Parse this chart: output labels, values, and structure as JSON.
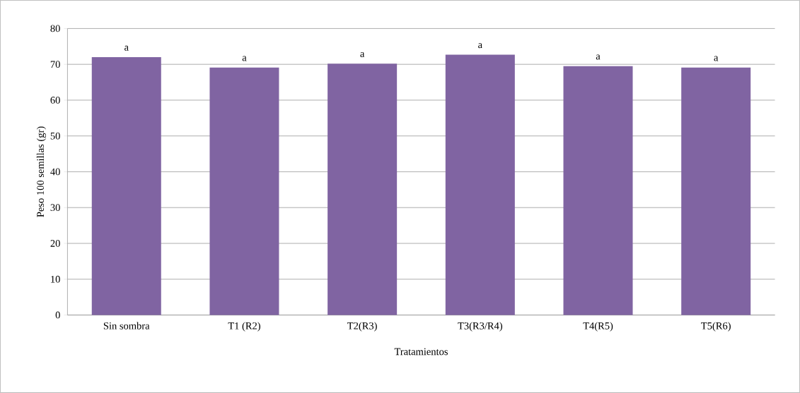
{
  "chart_data": {
    "type": "bar",
    "xlabel": "Tratamientos",
    "ylabel": "Peso 100 semillas (gr)",
    "categories": [
      "Sin sombra",
      "T1 (R2)",
      "T2(R3)",
      "T3(R3/R4)",
      "T4(R5)",
      "T5(R6)"
    ],
    "values": [
      72.0,
      69.1,
      70.2,
      72.7,
      69.5,
      69.1
    ],
    "color": "#8064a2",
    "ylim": [
      0,
      80
    ],
    "yticks": [
      0,
      10,
      20,
      30,
      40,
      50,
      60,
      70,
      80
    ],
    "grid": "y",
    "annotations": [
      {
        "text": "a",
        "x": "Sin sombra",
        "y": 72.0
      },
      {
        "text": "a",
        "x": "T1 (R2)",
        "y": 69.1
      },
      {
        "text": "a",
        "x": "T2(R3)",
        "y": 70.2
      },
      {
        "text": "a",
        "x": "T3(R3/R4)",
        "y": 72.7
      },
      {
        "text": "a",
        "x": "T4(R5)",
        "y": 69.5
      },
      {
        "text": "a",
        "x": "T5(R6)",
        "y": 69.1
      }
    ]
  }
}
